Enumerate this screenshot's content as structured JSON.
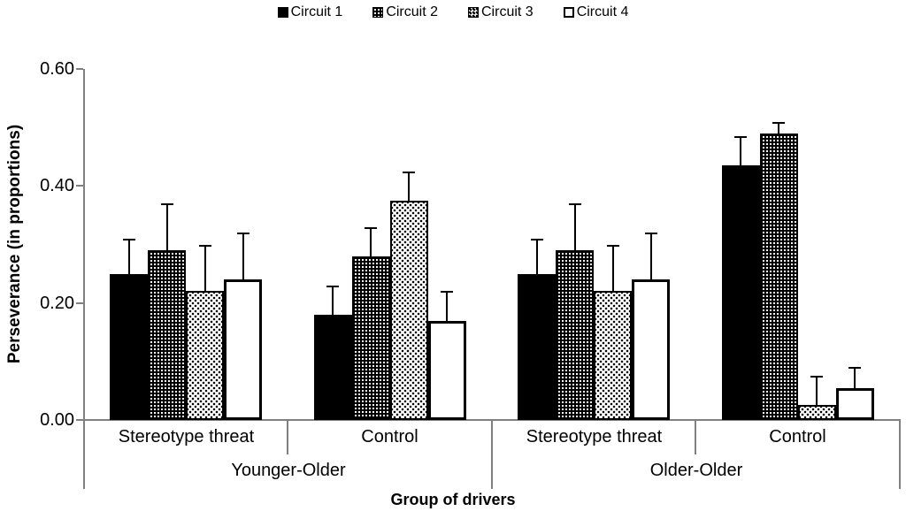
{
  "colors": {
    "axis_line": "#808080",
    "bar_fill_dark": "#000000",
    "bar_fill_light": "#ffffff",
    "text": "#000000"
  },
  "y_axis": {
    "title": "Perseverance (in proportions)",
    "ticks": [
      {
        "label": "0.60",
        "value": 0.6
      },
      {
        "label": "0.40",
        "value": 0.4
      },
      {
        "label": "0.20",
        "value": 0.2
      },
      {
        "label": "0.00",
        "value": 0.0
      }
    ]
  },
  "x_axis": {
    "title": "Group of drivers",
    "groups": [
      {
        "label": "Younger-Older",
        "subgroups": [
          {
            "label": "Stereotype threat"
          },
          {
            "label": "Control"
          }
        ]
      },
      {
        "label": "Older-Older",
        "subgroups": [
          {
            "label": "Stereotype threat"
          },
          {
            "label": "Control"
          }
        ]
      }
    ]
  },
  "chart_data": {
    "type": "bar",
    "title": "",
    "xlabel": "Group of drivers",
    "ylabel": "Perseverance (in proportions)",
    "ylim": [
      0,
      0.6
    ],
    "yticks": [
      0.6,
      0.4,
      0.2,
      0.0
    ],
    "grid": false,
    "legend_position": "top center",
    "error_bars": "upper whisker with cap",
    "categories": [
      "Younger-Older / Stereotype threat",
      "Younger-Older / Control",
      "Older-Older / Stereotype threat",
      "Older-Older / Control"
    ],
    "series": [
      {
        "name": "Circuit 1",
        "fill": "solid-black",
        "values": [
          0.25,
          0.18,
          0.25,
          0.435
        ],
        "errors": [
          0.06,
          0.05,
          0.06,
          0.05
        ]
      },
      {
        "name": "Circuit 2",
        "fill": "dots-white-on-black",
        "values": [
          0.29,
          0.28,
          0.29,
          0.49
        ],
        "errors": [
          0.08,
          0.05,
          0.08,
          0.02
        ]
      },
      {
        "name": "Circuit 3",
        "fill": "dots-black-on-white",
        "values": [
          0.22,
          0.375,
          0.22,
          0.025
        ],
        "errors": [
          0.08,
          0.05,
          0.08,
          0.05
        ]
      },
      {
        "name": "Circuit 4",
        "fill": "white-outline",
        "values": [
          0.24,
          0.17,
          0.24,
          0.055
        ],
        "errors": [
          0.08,
          0.05,
          0.08,
          0.035
        ]
      }
    ]
  }
}
